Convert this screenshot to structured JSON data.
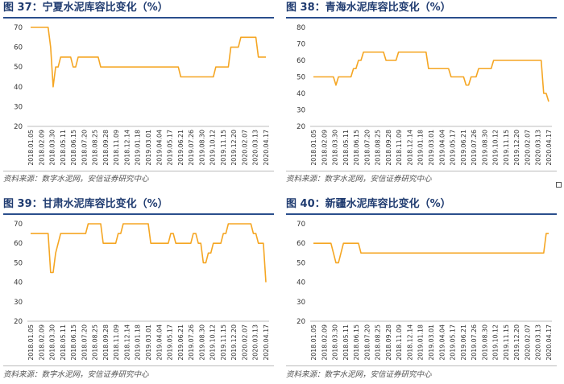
{
  "panels": [
    {
      "title_prefix": "图 37：",
      "title": "宁夏水泥库容比变化（%）",
      "source": "资料来源：数字水泥网，安信证券研究中心",
      "chart_data": {
        "type": "line",
        "ylim": [
          20,
          70
        ],
        "yticks": [
          20,
          30,
          40,
          50,
          60,
          70
        ],
        "xlabels": [
          "2018.01.05",
          "2018.02.09",
          "2018.03.30",
          "2018.05.11",
          "2018.06.15",
          "2018.07.20",
          "2018.08.25",
          "2018.09.28",
          "2018.11.09",
          "2018.12.14",
          "2019.01.18",
          "2019.03.01",
          "2019.04.04",
          "2019.05.17",
          "2019.06.21",
          "2019.07.26",
          "2019.08.30",
          "2019.10.12",
          "2019.11.15",
          "2019.12.20",
          "2020.02.07",
          "2020.03.13",
          "2020.04.17"
        ],
        "color": "#f5a623",
        "series": [
          {
            "values": [
              70,
              70,
              70,
              70,
              70,
              70,
              70,
              70,
              60,
              40,
              50,
              50,
              55,
              55,
              55,
              55,
              55,
              50,
              50,
              55,
              55,
              55,
              55,
              55,
              55,
              55,
              55,
              55,
              50,
              50,
              50,
              50,
              50,
              50,
              50,
              50,
              50,
              50,
              50,
              50,
              50,
              50,
              50,
              50,
              50,
              50,
              50,
              50,
              50,
              50,
              50,
              50,
              50,
              50,
              50,
              50,
              50,
              50,
              50,
              50,
              45,
              45,
              45,
              45,
              45,
              45,
              45,
              45,
              45,
              45,
              45,
              45,
              45,
              45,
              50,
              50,
              50,
              50,
              50,
              50,
              60,
              60,
              60,
              60,
              65,
              65,
              65,
              65,
              65,
              65,
              65,
              55,
              55,
              55,
              55
            ]
          }
        ]
      }
    },
    {
      "title_prefix": "图 38：",
      "title": "青海水泥库容比变化（%）",
      "source": "资料来源：数字水泥网，安信证券研究中心",
      "chart_data": {
        "type": "line",
        "ylim": [
          20,
          80
        ],
        "yticks": [
          20,
          30,
          40,
          50,
          60,
          70,
          80
        ],
        "xlabels": [
          "2018.01.05",
          "2018.02.09",
          "2018.03.30",
          "2018.05.11",
          "2018.06.15",
          "2018.07.20",
          "2018.08.25",
          "2018.09.28",
          "2018.11.09",
          "2018.12.14",
          "2019.01.18",
          "2019.03.01",
          "2019.04.04",
          "2019.05.17",
          "2019.06.21",
          "2019.07.26",
          "2019.08.30",
          "2019.10.12",
          "2019.11.15",
          "2019.12.20",
          "2020.02.07",
          "2020.03.13",
          "2020.04.17"
        ],
        "color": "#f5a623",
        "series": [
          {
            "values": [
              50,
              50,
              50,
              50,
              50,
              50,
              50,
              50,
              50,
              45,
              50,
              50,
              50,
              50,
              50,
              50,
              55,
              55,
              60,
              60,
              65,
              65,
              65,
              65,
              65,
              65,
              65,
              65,
              65,
              60,
              60,
              60,
              60,
              60,
              65,
              65,
              65,
              65,
              65,
              65,
              65,
              65,
              65,
              65,
              65,
              65,
              55,
              55,
              55,
              55,
              55,
              55,
              55,
              55,
              55,
              50,
              50,
              50,
              50,
              50,
              50,
              45,
              45,
              50,
              50,
              50,
              55,
              55,
              55,
              55,
              55,
              55,
              60,
              60,
              60,
              60,
              60,
              60,
              60,
              60,
              60,
              60,
              60,
              60,
              60,
              60,
              60,
              60,
              60,
              60,
              60,
              60,
              40,
              40,
              35
            ]
          }
        ]
      }
    },
    {
      "title_prefix": "图 39：",
      "title": "甘肃水泥库容比变化（%）",
      "source": "资料来源：数字水泥网，安信证券研究中心",
      "chart_data": {
        "type": "line",
        "ylim": [
          20,
          70
        ],
        "yticks": [
          20,
          30,
          40,
          50,
          60,
          70
        ],
        "xlabels": [
          "2018.01.05",
          "2018.02.09",
          "2018.03.30",
          "2018.05.11",
          "2018.06.15",
          "2018.07.20",
          "2018.08.25",
          "2018.09.28",
          "2018.11.09",
          "2018.12.14",
          "2019.01.18",
          "2019.03.01",
          "2019.04.04",
          "2019.05.17",
          "2019.06.21",
          "2019.07.26",
          "2019.08.30",
          "2019.10.12",
          "2019.11.15",
          "2019.12.20",
          "2020.02.07",
          "2020.03.13",
          "2020.04.17"
        ],
        "color": "#f5a623",
        "series": [
          {
            "values": [
              65,
              65,
              65,
              65,
              65,
              65,
              65,
              65,
              45,
              45,
              55,
              60,
              65,
              65,
              65,
              65,
              65,
              65,
              65,
              65,
              65,
              65,
              65,
              70,
              70,
              70,
              70,
              70,
              70,
              60,
              60,
              60,
              60,
              60,
              60,
              65,
              65,
              70,
              70,
              70,
              70,
              70,
              70,
              70,
              70,
              70,
              70,
              70,
              60,
              60,
              60,
              60,
              60,
              60,
              60,
              60,
              65,
              65,
              60,
              60,
              60,
              60,
              60,
              60,
              60,
              65,
              65,
              60,
              60,
              50,
              50,
              55,
              55,
              60,
              60,
              60,
              60,
              65,
              65,
              70,
              70,
              70,
              70,
              70,
              70,
              70,
              70,
              70,
              70,
              65,
              65,
              60,
              60,
              60,
              40
            ]
          }
        ]
      }
    },
    {
      "title_prefix": "图 40：",
      "title": "新疆水泥库容比变化（%）",
      "source": "资料来源：数字水泥网，安信证券研究中心",
      "chart_data": {
        "type": "line",
        "ylim": [
          20,
          70
        ],
        "yticks": [
          20,
          30,
          40,
          50,
          60,
          70
        ],
        "xlabels": [
          "2018.01.05",
          "2018.02.09",
          "2018.03.30",
          "2018.05.11",
          "2018.06.15",
          "2018.07.20",
          "2018.08.25",
          "2018.09.28",
          "2018.11.09",
          "2018.12.14",
          "2019.01.18",
          "2019.03.01",
          "2019.04.04",
          "2019.05.17",
          "2019.06.21",
          "2019.07.26",
          "2019.08.30",
          "2019.10.12",
          "2019.11.15",
          "2019.12.20",
          "2020.02.07",
          "2020.03.13",
          "2020.04.17"
        ],
        "color": "#f5a623",
        "series": [
          {
            "values": [
              60,
              60,
              60,
              60,
              60,
              60,
              60,
              60,
              55,
              50,
              50,
              55,
              60,
              60,
              60,
              60,
              60,
              60,
              60,
              55,
              55,
              55,
              55,
              55,
              55,
              55,
              55,
              55,
              55,
              55,
              55,
              55,
              55,
              55,
              55,
              55,
              55,
              55,
              55,
              55,
              55,
              55,
              55,
              55,
              55,
              55,
              55,
              55,
              55,
              55,
              55,
              55,
              55,
              55,
              55,
              55,
              55,
              55,
              55,
              55,
              55,
              55,
              55,
              55,
              55,
              55,
              55,
              55,
              55,
              55,
              55,
              55,
              55,
              55,
              55,
              55,
              55,
              55,
              55,
              55,
              55,
              55,
              55,
              55,
              55,
              55,
              55,
              55,
              55,
              55,
              55,
              55,
              55,
              65,
              65
            ]
          }
        ]
      }
    }
  ]
}
